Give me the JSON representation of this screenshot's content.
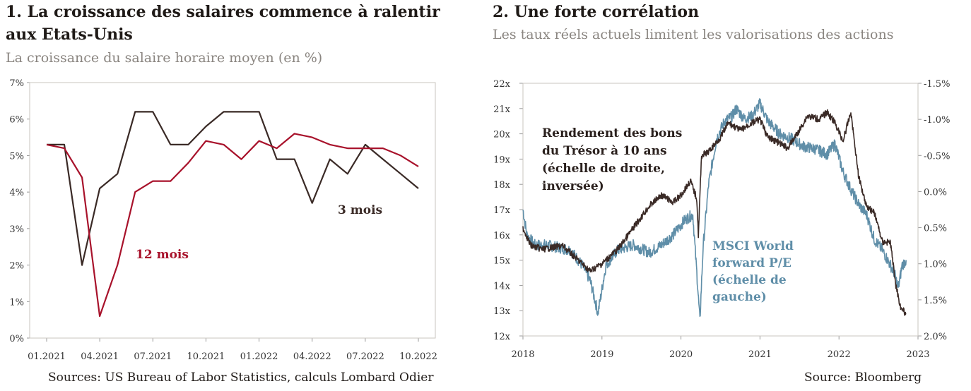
{
  "left": {
    "title": "1. La croissance des salaires commence à ralentir aux Etats-Unis",
    "subtitle": "La croissance du salaire horaire moyen (en %)",
    "source": "Sources: US Bureau of Labor Statistics, calculs Lombard Odier"
  },
  "right": {
    "title": "2. Une forte corrélation",
    "subtitle": "Les taux réels actuels limitent les valorisations des actions",
    "source": "Source: Bloomberg"
  },
  "colors": {
    "dark": "#3a2a26",
    "red": "#a8122b",
    "blue": "#5f8ea8",
    "grid": "#d8d4d0"
  },
  "chart_data": [
    {
      "type": "line",
      "x": [
        "01.2021",
        "02.2021",
        "03.2021",
        "04.2021",
        "05.2021",
        "06.2021",
        "07.2021",
        "08.2021",
        "09.2021",
        "10.2021",
        "11.2021",
        "12.2021",
        "01.2022",
        "02.2022",
        "03.2022",
        "04.2022",
        "05.2022",
        "06.2022",
        "07.2022",
        "08.2022",
        "09.2022",
        "10.2022"
      ],
      "x_ticks": [
        "01.2021",
        "04.2021",
        "07.2021",
        "10.2021",
        "01.2022",
        "04.2022",
        "07.2022",
        "10.2022"
      ],
      "y_ticks": [
        "0%",
        "1%",
        "2%",
        "3%",
        "4%",
        "5%",
        "6%",
        "7%"
      ],
      "ylim": [
        0,
        7
      ],
      "series": [
        {
          "name": "3 mois",
          "values": [
            5.3,
            5.3,
            2.0,
            4.1,
            4.5,
            6.2,
            6.2,
            5.3,
            5.3,
            5.8,
            6.2,
            6.2,
            6.2,
            4.9,
            4.9,
            3.7,
            4.9,
            4.5,
            5.3,
            4.9,
            4.5,
            4.1
          ]
        },
        {
          "name": "12 mois",
          "values": [
            5.3,
            5.2,
            4.4,
            0.6,
            2.0,
            4.0,
            4.3,
            4.3,
            4.8,
            5.4,
            5.3,
            4.9,
            5.4,
            5.2,
            5.6,
            5.5,
            5.3,
            5.2,
            5.2,
            5.2,
            5.0,
            4.7
          ]
        }
      ]
    },
    {
      "type": "line",
      "x_ticks": [
        "2018",
        "2019",
        "2020",
        "2021",
        "2022",
        "2023"
      ],
      "y_left_ticks": [
        "22x",
        "21x",
        "20x",
        "19x",
        "18x",
        "17x",
        "16x",
        "15x",
        "14x",
        "13x",
        "12x"
      ],
      "y_right_ticks": [
        "-1.5%",
        "-1.0%",
        "-0.5%",
        "0.0%",
        "0.5%",
        "1.0%",
        "1.5%",
        "2.0%"
      ],
      "ylim_left": [
        12,
        22
      ],
      "ylim_right_inverted": [
        2.0,
        -1.5
      ],
      "series": [
        {
          "name": "Rendement des bons du Trésor à 10 ans (échelle de droite, inversée)",
          "axis": "right",
          "points": [
            [
              2018.0,
              0.5
            ],
            [
              2018.1,
              0.75
            ],
            [
              2018.25,
              0.8
            ],
            [
              2018.5,
              0.75
            ],
            [
              2018.7,
              0.95
            ],
            [
              2018.85,
              1.1
            ],
            [
              2019.0,
              1.0
            ],
            [
              2019.2,
              0.8
            ],
            [
              2019.4,
              0.5
            ],
            [
              2019.6,
              0.2
            ],
            [
              2019.75,
              0.05
            ],
            [
              2019.9,
              0.15
            ],
            [
              2020.0,
              0.05
            ],
            [
              2020.12,
              -0.15
            ],
            [
              2020.2,
              0.1
            ],
            [
              2020.22,
              0.6
            ],
            [
              2020.26,
              -0.5
            ],
            [
              2020.35,
              -0.55
            ],
            [
              2020.5,
              -0.75
            ],
            [
              2020.6,
              -0.95
            ],
            [
              2020.75,
              -0.85
            ],
            [
              2020.9,
              -0.95
            ],
            [
              2021.0,
              -1.0
            ],
            [
              2021.1,
              -0.75
            ],
            [
              2021.2,
              -0.7
            ],
            [
              2021.35,
              -0.6
            ],
            [
              2021.5,
              -0.85
            ],
            [
              2021.6,
              -1.05
            ],
            [
              2021.75,
              -1.0
            ],
            [
              2021.85,
              -1.1
            ],
            [
              2021.95,
              -0.95
            ],
            [
              2022.05,
              -0.7
            ],
            [
              2022.15,
              -1.1
            ],
            [
              2022.25,
              -0.2
            ],
            [
              2022.35,
              0.2
            ],
            [
              2022.45,
              0.3
            ],
            [
              2022.55,
              0.7
            ],
            [
              2022.65,
              0.7
            ],
            [
              2022.72,
              1.3
            ],
            [
              2022.78,
              1.6
            ],
            [
              2022.85,
              1.7
            ]
          ]
        },
        {
          "name": "MSCI World forward P/E (échelle de gauche)",
          "axis": "left",
          "points": [
            [
              2018.0,
              17.0
            ],
            [
              2018.05,
              16.0
            ],
            [
              2018.15,
              15.6
            ],
            [
              2018.3,
              15.6
            ],
            [
              2018.45,
              15.5
            ],
            [
              2018.6,
              15.4
            ],
            [
              2018.75,
              14.8
            ],
            [
              2018.85,
              14.2
            ],
            [
              2018.95,
              12.9
            ],
            [
              2019.05,
              14.8
            ],
            [
              2019.2,
              15.4
            ],
            [
              2019.4,
              15.6
            ],
            [
              2019.6,
              15.3
            ],
            [
              2019.75,
              15.6
            ],
            [
              2019.9,
              16.0
            ],
            [
              2020.05,
              16.6
            ],
            [
              2020.15,
              16.8
            ],
            [
              2020.2,
              14.5
            ],
            [
              2020.24,
              12.6
            ],
            [
              2020.28,
              15.5
            ],
            [
              2020.35,
              18.0
            ],
            [
              2020.45,
              19.8
            ],
            [
              2020.55,
              20.5
            ],
            [
              2020.65,
              20.7
            ],
            [
              2020.7,
              21.0
            ],
            [
              2020.8,
              20.6
            ],
            [
              2020.9,
              20.7
            ],
            [
              2021.0,
              21.2
            ],
            [
              2021.1,
              20.5
            ],
            [
              2021.25,
              20.0
            ],
            [
              2021.4,
              19.8
            ],
            [
              2021.55,
              19.5
            ],
            [
              2021.7,
              19.4
            ],
            [
              2021.85,
              19.2
            ],
            [
              2021.95,
              19.6
            ],
            [
              2022.05,
              18.5
            ],
            [
              2022.15,
              17.8
            ],
            [
              2022.25,
              17.2
            ],
            [
              2022.35,
              16.8
            ],
            [
              2022.45,
              15.8
            ],
            [
              2022.55,
              15.4
            ],
            [
              2022.65,
              14.8
            ],
            [
              2022.7,
              14.5
            ],
            [
              2022.75,
              13.9
            ],
            [
              2022.8,
              14.8
            ],
            [
              2022.85,
              15.0
            ]
          ]
        }
      ],
      "annotations": [
        "Rendement des bons",
        "du Trésor à 10 ans",
        "(échelle de droite,",
        "inversée)",
        "MSCI World",
        "forward P/E",
        "(échelle de",
        "gauche)"
      ]
    }
  ]
}
